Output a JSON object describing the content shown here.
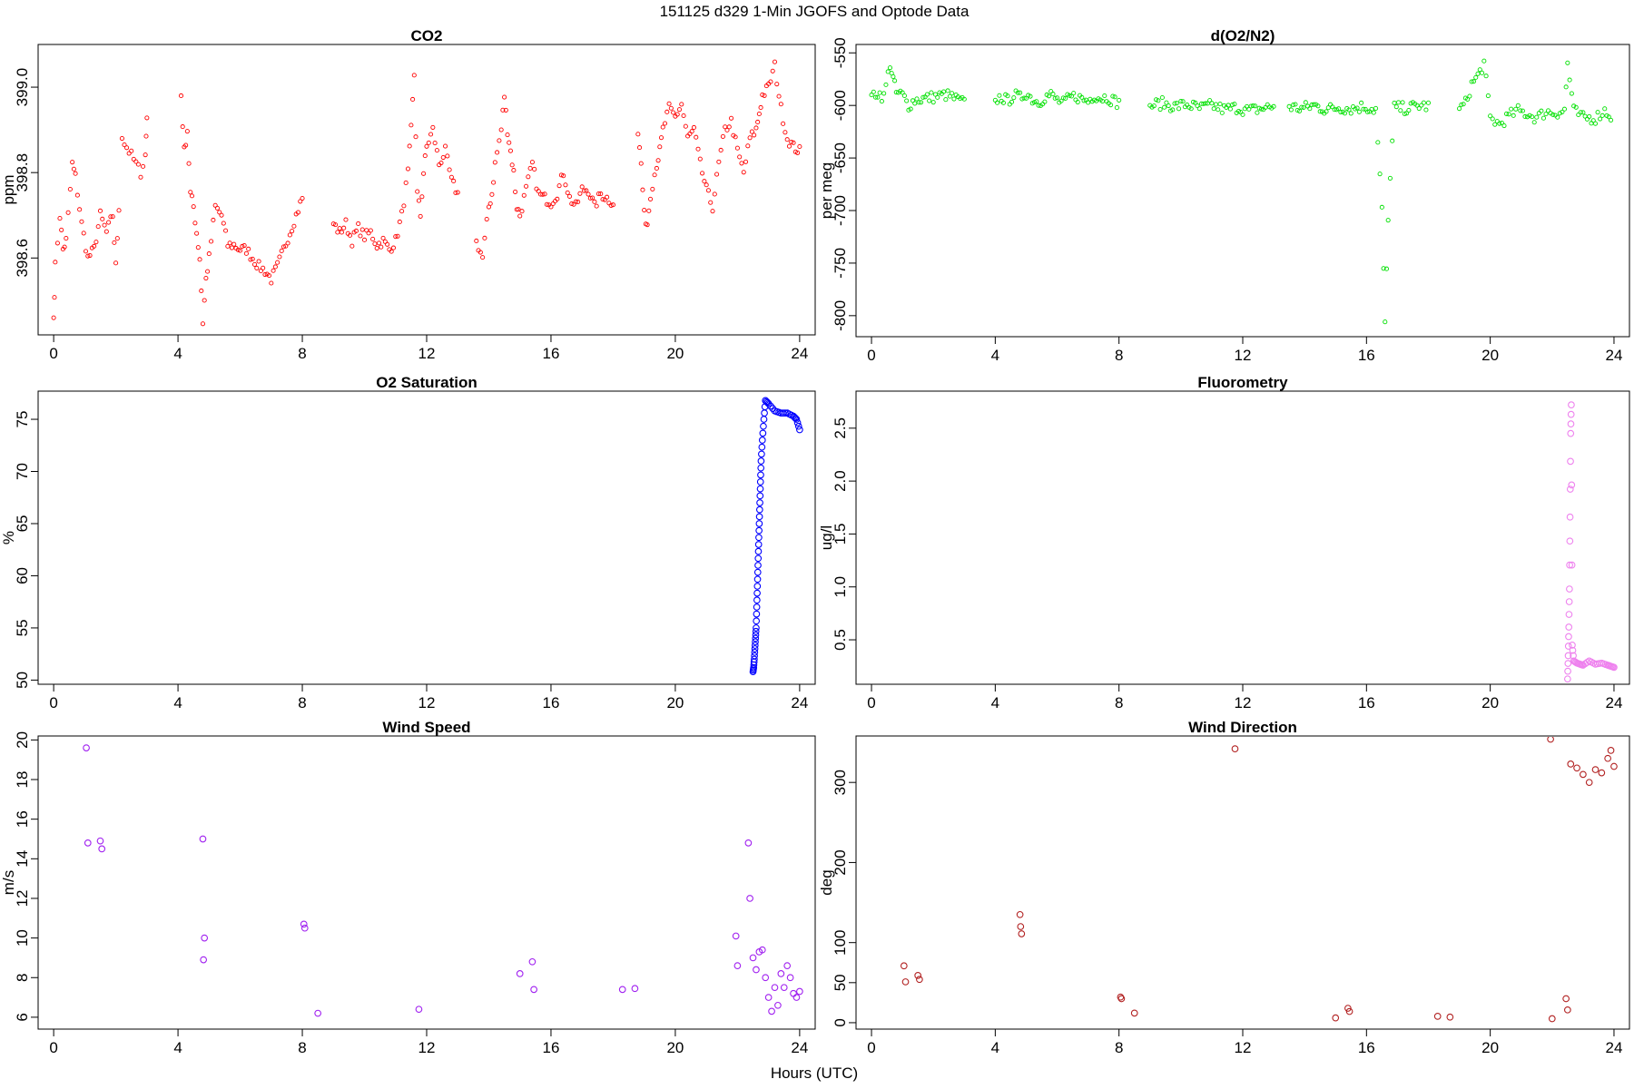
{
  "figure": {
    "title": "151125   d329   1-Min  JGOFS and Optode Data",
    "xlabel": "Hours (UTC)"
  },
  "chart_data": [
    {
      "id": "co2",
      "type": "scatter",
      "title": "CO2",
      "xlabel": "",
      "ylabel": "ppm",
      "color": "#ff0000",
      "xlim": [
        -0.5,
        24.5
      ],
      "ylim": [
        398.42,
        399.1
      ],
      "xticks": [
        0,
        4,
        8,
        12,
        16,
        20,
        24
      ],
      "yticks": [
        398.6,
        398.8,
        399.0
      ],
      "ytick_labels": [
        "398.6",
        "398.8",
        "399.0"
      ],
      "segments": [
        {
          "x": [
            0.0,
            0.05,
            0.2,
            0.3,
            0.4,
            0.6,
            0.7,
            0.9,
            1.1,
            1.3,
            1.5,
            1.7,
            1.9,
            2.0,
            2.1
          ],
          "y": [
            398.46,
            398.58,
            398.7,
            398.62,
            398.64,
            398.82,
            398.79,
            398.68,
            398.6,
            398.62,
            398.7,
            398.66,
            398.7,
            398.58,
            398.72
          ]
        },
        {
          "x": [
            2.2,
            2.35,
            2.5,
            2.65,
            2.8,
            2.95,
            3.0
          ],
          "y": [
            398.88,
            398.86,
            398.84,
            398.82,
            398.8,
            398.84,
            398.93
          ]
        },
        {
          "x": [
            4.1,
            4.2,
            4.3,
            4.4,
            4.5,
            4.6,
            4.7,
            4.8,
            4.9,
            5.0,
            5.2,
            5.4,
            5.6,
            5.8,
            6.0,
            6.2,
            6.4,
            6.6,
            6.8,
            7.0,
            7.2,
            7.4,
            7.6,
            7.8,
            8.0
          ],
          "y": [
            398.98,
            398.85,
            398.9,
            398.75,
            398.72,
            398.66,
            398.6,
            398.45,
            398.55,
            398.6,
            398.72,
            398.7,
            398.63,
            398.63,
            398.62,
            398.62,
            398.6,
            398.58,
            398.57,
            398.55,
            398.58,
            398.62,
            398.66,
            398.7,
            398.74
          ]
        },
        {
          "x": [
            9.0,
            9.2,
            9.4,
            9.6,
            9.8,
            10.0,
            10.2,
            10.4,
            10.6,
            10.8,
            11.0,
            11.2,
            11.4,
            11.5,
            11.6,
            11.7,
            11.8,
            11.9,
            12.0,
            12.2,
            12.4,
            12.6,
            12.8,
            13.0
          ],
          "y": [
            398.68,
            398.66,
            398.68,
            398.64,
            398.67,
            398.65,
            398.66,
            398.63,
            398.64,
            398.62,
            398.64,
            398.7,
            398.8,
            398.9,
            399.03,
            398.75,
            398.7,
            398.8,
            398.86,
            398.9,
            398.82,
            398.85,
            398.78,
            398.75
          ]
        },
        {
          "x": [
            13.6,
            13.8,
            14.0,
            14.1,
            14.2,
            14.4,
            14.5,
            14.6,
            14.7,
            14.8,
            14.9,
            15.0,
            15.2,
            15.4,
            15.6,
            15.8,
            16.0,
            16.2,
            16.4,
            16.6,
            16.8,
            17.0,
            17.2,
            17.4,
            17.6,
            17.8,
            18.0
          ],
          "y": [
            398.64,
            398.6,
            398.72,
            398.75,
            398.82,
            398.9,
            398.98,
            398.9,
            398.85,
            398.8,
            398.72,
            398.7,
            398.76,
            398.82,
            398.75,
            398.74,
            398.73,
            398.75,
            398.8,
            398.74,
            398.72,
            398.76,
            398.76,
            398.72,
            398.75,
            398.74,
            398.73
          ]
        },
        {
          "x": [
            18.8,
            18.9,
            19.0,
            19.1,
            19.2,
            19.4,
            19.5,
            19.6,
            19.8,
            20.0,
            20.2,
            20.4,
            20.6,
            20.8,
            21.0,
            21.2,
            21.4,
            21.6,
            21.8,
            22.0,
            22.2,
            22.4,
            22.6,
            22.7,
            22.8,
            23.0,
            23.2,
            23.4,
            23.6,
            23.8,
            24.0
          ],
          "y": [
            398.89,
            398.82,
            398.7,
            398.68,
            398.75,
            398.82,
            398.85,
            398.9,
            398.95,
            398.93,
            398.96,
            398.88,
            398.9,
            398.82,
            398.76,
            398.72,
            398.82,
            398.9,
            398.92,
            398.85,
            398.8,
            398.88,
            398.9,
            398.94,
            398.98,
            399.0,
            399.05,
            398.95,
            398.88,
            398.86,
            398.85
          ]
        }
      ]
    },
    {
      "id": "do2n2",
      "type": "scatter",
      "title": "d(O2/N2)",
      "xlabel": "",
      "ylabel": "per meg",
      "color": "#00e000",
      "xlim": [
        -0.5,
        24.5
      ],
      "ylim": [
        -820,
        -542
      ],
      "xticks": [
        0,
        4,
        8,
        12,
        16,
        20,
        24
      ],
      "yticks": [
        -800,
        -750,
        -700,
        -650,
        -600,
        -550
      ],
      "ytick_labels": [
        "-800",
        "-750",
        "-700",
        "-650",
        "-600",
        "-550"
      ],
      "segments": [
        {
          "x": [
            0.0,
            0.2,
            0.4,
            0.6,
            0.7,
            0.8,
            1.0,
            1.2,
            1.4,
            1.6,
            1.8,
            2.0,
            2.2,
            2.4,
            2.6,
            2.8,
            3.0
          ],
          "y": [
            -590,
            -588,
            -592,
            -560,
            -575,
            -588,
            -590,
            -600,
            -595,
            -594,
            -593,
            -592,
            -591,
            -590,
            -592,
            -595,
            -598
          ]
        },
        {
          "x": [
            4.0,
            4.2,
            4.4,
            4.6,
            4.8,
            5.0,
            5.2,
            5.4,
            5.6,
            5.8,
            6.0,
            6.2,
            6.4,
            6.6,
            6.8,
            7.0,
            7.2,
            7.4,
            7.6,
            7.8,
            8.0
          ],
          "y": [
            -595,
            -592,
            -596,
            -590,
            -593,
            -588,
            -594,
            -597,
            -592,
            -590,
            -595,
            -598,
            -593,
            -591,
            -594,
            -596,
            -590,
            -593,
            -592,
            -595,
            -598
          ]
        },
        {
          "x": [
            9.0,
            9.4,
            9.8,
            10.2,
            10.6,
            11.0,
            11.4,
            11.8,
            12.2,
            12.6,
            13.0
          ],
          "y": [
            -600,
            -598,
            -601,
            -599,
            -603,
            -600,
            -604,
            -602,
            -605,
            -603,
            -601
          ]
        },
        {
          "x": [
            13.5,
            13.9,
            14.3,
            14.7,
            15.1,
            15.5,
            15.9,
            16.3,
            16.5,
            16.6,
            16.7,
            16.9,
            17.3,
            17.7,
            18.0
          ],
          "y": [
            -601,
            -603,
            -600,
            -604,
            -602,
            -603,
            -601,
            -604,
            -700,
            -810,
            -705,
            -602,
            -603,
            -600,
            -601
          ]
        },
        {
          "x": [
            19.0,
            19.2,
            19.4,
            19.6,
            19.8,
            20.0,
            20.3,
            20.6,
            20.9,
            21.2,
            21.5,
            21.8,
            22.1,
            22.4,
            22.5,
            22.7,
            23.0,
            23.4,
            23.7,
            23.9
          ],
          "y": [
            -603,
            -598,
            -580,
            -572,
            -560,
            -612,
            -618,
            -610,
            -605,
            -608,
            -612,
            -606,
            -607,
            -605,
            -560,
            -605,
            -612,
            -612,
            -605,
            -610
          ]
        }
      ]
    },
    {
      "id": "o2sat",
      "type": "scatter",
      "title": "O2 Saturation",
      "xlabel": "",
      "ylabel": "%",
      "color": "#0000ff",
      "xlim": [
        -0.5,
        24.5
      ],
      "ylim": [
        49.6,
        77.7
      ],
      "xticks": [
        0,
        4,
        8,
        12,
        16,
        20,
        24
      ],
      "yticks": [
        50,
        55,
        60,
        65,
        70,
        75
      ],
      "ytick_labels": [
        "50",
        "55",
        "60",
        "65",
        "70",
        "75"
      ],
      "segments": [
        {
          "x": [
            22.5,
            22.52,
            22.54,
            22.56,
            22.58,
            22.6,
            22.62,
            22.64,
            22.66,
            22.68,
            22.7,
            22.72,
            22.74,
            22.76,
            22.8,
            22.85,
            22.9,
            23.0,
            23.2,
            23.4,
            23.6,
            23.8,
            23.9,
            24.0
          ],
          "y": [
            50.8,
            51.2,
            52,
            53,
            54,
            55,
            57,
            59,
            61,
            63,
            65,
            67,
            69,
            71,
            73,
            75,
            76.8,
            76.5,
            75.8,
            75.6,
            75.6,
            75.3,
            75,
            74
          ]
        }
      ]
    },
    {
      "id": "fluoro",
      "type": "scatter",
      "title": "Fluorometry",
      "xlabel": "",
      "ylabel": "ug/l",
      "color": "#ee82ee",
      "xlim": [
        -0.5,
        24.5
      ],
      "ylim": [
        0.08,
        2.85
      ],
      "xticks": [
        0,
        4,
        8,
        12,
        16,
        20,
        24
      ],
      "yticks": [
        0.5,
        1.0,
        1.5,
        2.0,
        2.5
      ],
      "ytick_labels": [
        "0.5",
        "1.0",
        "1.5",
        "2.0",
        "2.5"
      ],
      "segments": [
        {
          "x": [
            22.5,
            22.52,
            22.54,
            22.56,
            22.58,
            22.6,
            22.62,
            22.65,
            22.7,
            22.8,
            22.9,
            23.0,
            23.2,
            23.4,
            23.6,
            23.8,
            23.9,
            24.0
          ],
          "y": [
            0.13,
            0.35,
            0.62,
            0.98,
            1.66,
            2.45,
            2.72,
            0.45,
            0.3,
            0.28,
            0.27,
            0.26,
            0.3,
            0.27,
            0.28,
            0.26,
            0.25,
            0.24
          ]
        }
      ]
    },
    {
      "id": "wspd",
      "type": "scatter",
      "title": "Wind Speed",
      "xlabel": "",
      "ylabel": "m/s",
      "color": "#a020f0",
      "xlim": [
        -0.5,
        24.5
      ],
      "ylim": [
        5.4,
        20.2
      ],
      "xticks": [
        0,
        4,
        8,
        12,
        16,
        20,
        24
      ],
      "yticks": [
        6,
        8,
        10,
        12,
        14,
        16,
        18,
        20
      ],
      "ytick_labels": [
        "6",
        "8",
        "10",
        "12",
        "14",
        "16",
        "18",
        "20"
      ],
      "points": {
        "x": [
          1.05,
          1.1,
          1.5,
          1.55,
          4.8,
          4.85,
          4.82,
          8.05,
          8.08,
          8.5,
          11.75,
          15.0,
          15.4,
          15.45,
          18.3,
          18.7,
          21.95,
          22.0,
          22.35,
          22.4,
          22.5,
          22.6,
          22.7,
          22.8,
          22.9,
          23.0,
          23.1,
          23.2,
          23.3,
          23.4,
          23.5,
          23.6,
          23.7,
          23.8,
          23.9,
          24.0
        ],
        "y": [
          19.6,
          14.8,
          14.9,
          14.5,
          15.0,
          10.0,
          8.9,
          10.7,
          10.5,
          6.2,
          6.4,
          8.2,
          8.8,
          7.4,
          7.4,
          7.45,
          10.1,
          8.6,
          14.8,
          12.0,
          9.0,
          8.4,
          9.3,
          9.4,
          8.0,
          7.0,
          6.3,
          7.5,
          6.6,
          8.2,
          7.5,
          8.6,
          8.0,
          7.2,
          7.0,
          7.3
        ]
      }
    },
    {
      "id": "wdir",
      "type": "scatter",
      "title": "Wind Direction",
      "xlabel": "",
      "ylabel": "deg",
      "color": "#b22222",
      "xlim": [
        -0.5,
        24.5
      ],
      "ylim": [
        -8,
        358
      ],
      "xticks": [
        0,
        4,
        8,
        12,
        16,
        20,
        24
      ],
      "yticks": [
        0,
        50,
        100,
        200,
        300
      ],
      "ytick_labels": [
        "0",
        "50",
        "100",
        "200",
        "300"
      ],
      "points": {
        "x": [
          1.05,
          1.1,
          1.5,
          1.55,
          4.8,
          4.82,
          4.85,
          8.05,
          8.08,
          8.5,
          11.75,
          15.0,
          15.4,
          15.45,
          18.3,
          18.7,
          21.95,
          22.0,
          22.45,
          22.5,
          22.6,
          22.8,
          23.0,
          23.2,
          23.4,
          23.6,
          23.8,
          23.9,
          24.0
        ],
        "y": [
          71,
          51,
          59,
          54,
          135,
          120,
          111,
          32,
          30,
          12,
          342,
          6,
          18,
          14,
          8,
          7,
          354,
          5,
          30,
          16,
          323,
          318,
          310,
          300,
          316,
          312,
          330,
          340,
          320
        ]
      }
    }
  ]
}
